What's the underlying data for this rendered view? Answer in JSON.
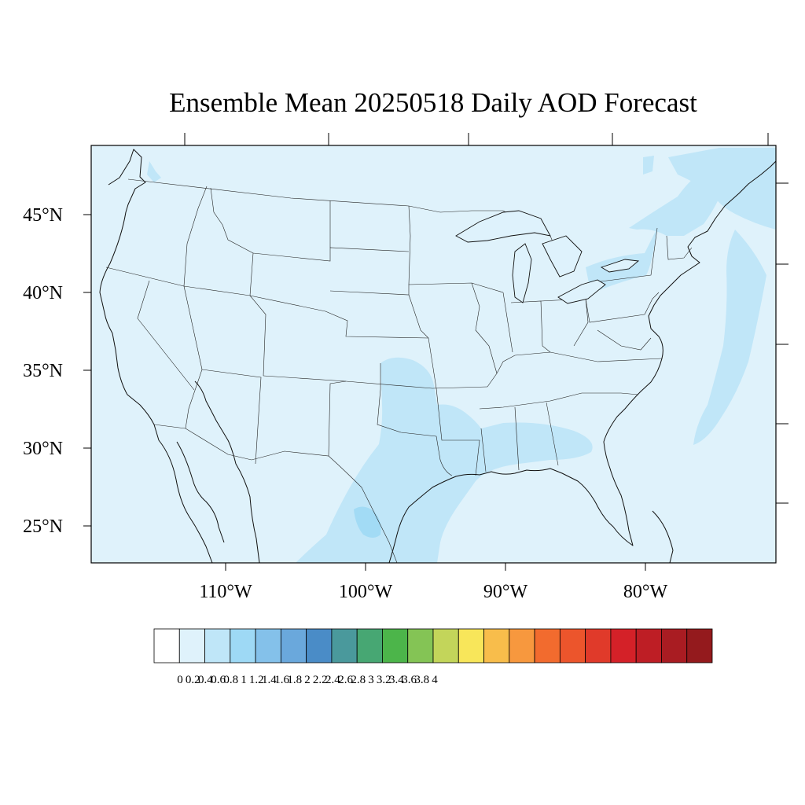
{
  "map": {
    "title": "Ensemble Mean 20250518 Daily AOD Forecast",
    "lat_labels": [
      "45°N",
      "40°N",
      "35°N",
      "30°N",
      "25°N"
    ],
    "lon_labels": [
      "110°W",
      "100°W",
      "90°W",
      "80°W"
    ],
    "background_color": "#dff2fb",
    "level_0_2_color": "#c0e6f8"
  },
  "colorbar": {
    "labels": [
      "0",
      "0.2",
      "0.4",
      "0.6",
      "0.8",
      "1",
      "1.2",
      "1.4",
      "1.6",
      "1.8",
      "2",
      "2.2",
      "2.4",
      "2.6",
      "2.8",
      "3",
      "3.2",
      "3.4",
      "3.6",
      "3.8",
      "4"
    ],
    "colors": [
      "#ffffff",
      "#dff2fb",
      "#bfe6f8",
      "#9ed9f5",
      "#84c1ea",
      "#6aa8dc",
      "#4a8cc7",
      "#4a999c",
      "#47a773",
      "#4cb54a",
      "#84c455",
      "#c3d55a",
      "#f8e65a",
      "#f8bd4b",
      "#f7983e",
      "#f26b2e",
      "#ec552c",
      "#e03a2a",
      "#d42128",
      "#be1e25",
      "#a91c22",
      "#941a1d"
    ]
  }
}
